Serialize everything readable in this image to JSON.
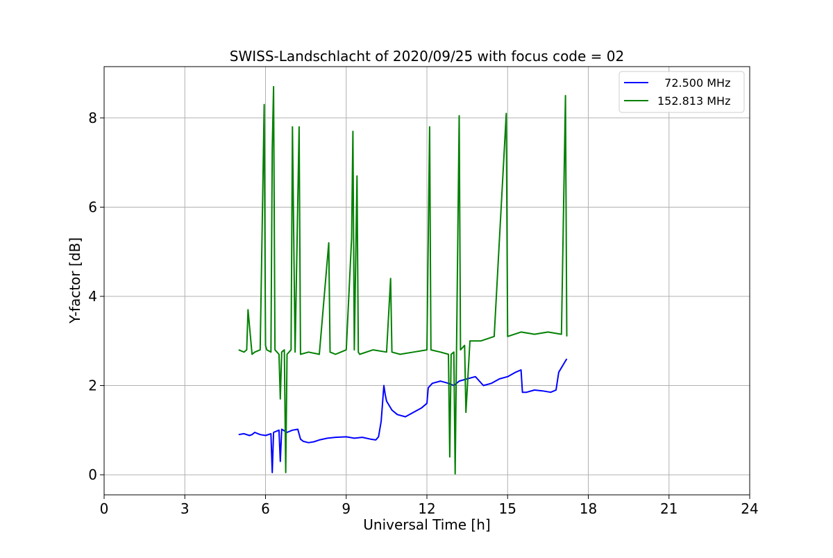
{
  "chart_data": {
    "type": "line",
    "title": "SWISS-Landschlacht of 2020/09/25 with focus code = 02",
    "xlabel": "Universal Time [h]",
    "ylabel": "Y-factor [dB]",
    "xlim": [
      0,
      24
    ],
    "ylim": [
      -0.45,
      9.15
    ],
    "xticks": [
      0,
      3,
      6,
      9,
      12,
      15,
      18,
      21,
      24
    ],
    "yticks": [
      0,
      2,
      4,
      6,
      8
    ],
    "grid": true,
    "legend_position": "top-right",
    "series": [
      {
        "name": "  72.500 MHz",
        "color": "#0000ff",
        "x": [
          5.0,
          5.2,
          5.4,
          5.5,
          5.6,
          5.8,
          6.0,
          6.2,
          6.25,
          6.3,
          6.5,
          6.55,
          6.6,
          6.8,
          7.0,
          7.2,
          7.3,
          7.4,
          7.6,
          7.8,
          8.0,
          8.3,
          8.6,
          9.0,
          9.3,
          9.6,
          9.9,
          10.1,
          10.2,
          10.3,
          10.4,
          10.45,
          10.5,
          10.7,
          10.9,
          11.2,
          11.5,
          11.8,
          12.0,
          12.05,
          12.2,
          12.5,
          12.8,
          13.0,
          13.2,
          13.5,
          13.8,
          14.1,
          14.4,
          14.7,
          15.0,
          15.3,
          15.5,
          15.55,
          15.7,
          16.0,
          16.3,
          16.6,
          16.8,
          16.9,
          17.0,
          17.1,
          17.2
        ],
        "y": [
          0.9,
          0.92,
          0.88,
          0.9,
          0.95,
          0.9,
          0.88,
          0.92,
          0.05,
          0.95,
          1.0,
          0.3,
          1.02,
          0.95,
          1.0,
          1.02,
          0.8,
          0.75,
          0.72,
          0.74,
          0.78,
          0.82,
          0.84,
          0.85,
          0.82,
          0.84,
          0.8,
          0.78,
          0.85,
          1.2,
          2.0,
          1.8,
          1.65,
          1.45,
          1.35,
          1.3,
          1.4,
          1.5,
          1.6,
          1.95,
          2.05,
          2.1,
          2.05,
          2.0,
          2.1,
          2.15,
          2.2,
          2.0,
          2.05,
          2.15,
          2.2,
          2.3,
          2.35,
          1.85,
          1.85,
          1.9,
          1.88,
          1.85,
          1.9,
          2.3,
          2.4,
          2.5,
          2.6
        ]
      },
      {
        "name": "152.813 MHz",
        "color": "#008000",
        "x": [
          5.0,
          5.2,
          5.3,
          5.35,
          5.5,
          5.6,
          5.8,
          5.95,
          6.0,
          6.05,
          6.2,
          6.25,
          6.3,
          6.35,
          6.5,
          6.55,
          6.6,
          6.7,
          6.75,
          6.8,
          6.95,
          7.0,
          7.1,
          7.25,
          7.3,
          7.6,
          8.0,
          8.35,
          8.4,
          8.6,
          9.0,
          9.2,
          9.25,
          9.3,
          9.4,
          9.45,
          9.5,
          10.0,
          10.5,
          10.65,
          10.7,
          11.0,
          11.5,
          12.0,
          12.1,
          12.15,
          12.5,
          12.8,
          12.85,
          12.9,
          13.0,
          13.05,
          13.1,
          13.2,
          13.25,
          13.4,
          13.45,
          13.6,
          14.0,
          14.5,
          14.95,
          15.0,
          15.5,
          16.0,
          16.5,
          17.0,
          17.15,
          17.2
        ],
        "y": [
          2.8,
          2.75,
          2.8,
          3.7,
          2.7,
          2.75,
          2.8,
          8.3,
          2.9,
          2.8,
          2.75,
          7.3,
          8.7,
          2.8,
          2.7,
          1.7,
          2.75,
          2.8,
          0.05,
          2.7,
          2.8,
          7.8,
          2.75,
          7.8,
          2.7,
          2.75,
          2.7,
          5.2,
          2.75,
          2.7,
          2.8,
          5.3,
          7.7,
          2.8,
          6.7,
          2.75,
          2.7,
          2.8,
          2.75,
          4.4,
          2.75,
          2.7,
          2.75,
          2.8,
          7.8,
          2.8,
          2.75,
          2.7,
          0.4,
          2.7,
          2.75,
          0.02,
          2.7,
          8.05,
          2.8,
          2.9,
          1.4,
          3.0,
          3.0,
          3.1,
          8.1,
          3.1,
          3.2,
          3.15,
          3.2,
          3.15,
          8.5,
          3.1
        ]
      }
    ]
  }
}
